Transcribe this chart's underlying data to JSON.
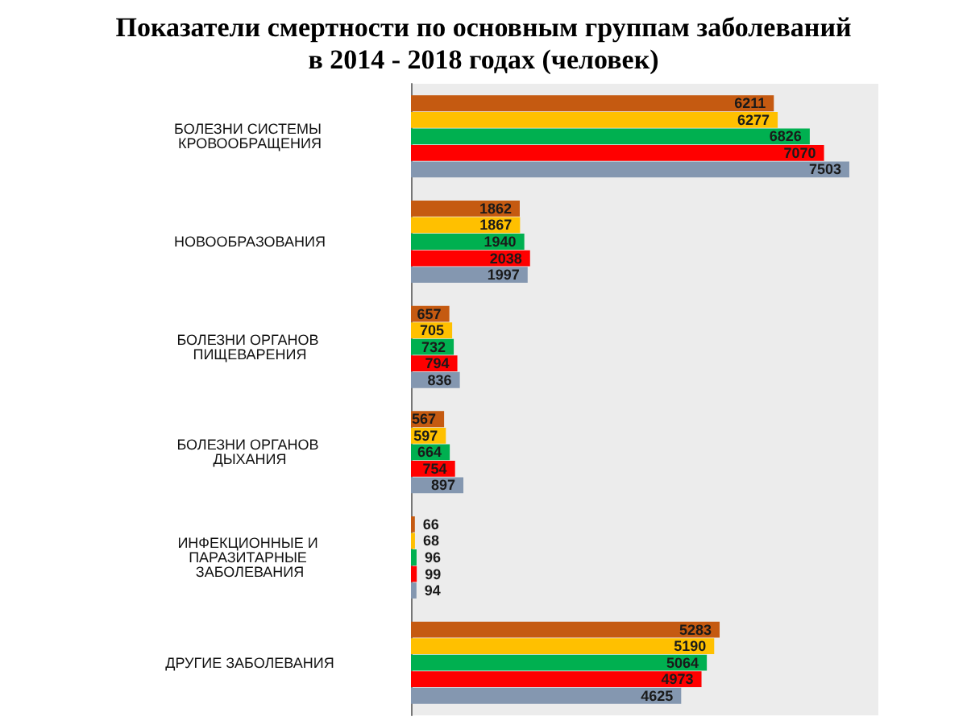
{
  "chart_data": {
    "type": "bar",
    "orientation": "horizontal",
    "title": "Показатели смертности по основным группам заболеваний\nв 2014 - 2018 годах (человек)",
    "categories": [
      "БОЛЕЗНИ СИСТЕМЫ КРОВООБРАЩЕНИЯ",
      "НОВООБРАЗОВАНИЯ",
      "БОЛЕЗНИ ОРГАНОВ ПИЩЕВАРЕНИЯ",
      "БОЛЕЗНИ ОРГАНОВ ДЫХАНИЯ",
      "ИНФЕКЦИОННЫЕ И ПАРАЗИТАРНЫЕ ЗАБОЛЕВАНИЯ",
      "ДРУГИЕ ЗАБОЛЕВАНИЯ"
    ],
    "series": [
      {
        "color": "#c55a11",
        "values": [
          6211,
          1862,
          657,
          567,
          66,
          5283
        ]
      },
      {
        "color": "#ffc000",
        "values": [
          6277,
          1867,
          705,
          597,
          68,
          5190
        ]
      },
      {
        "color": "#00b050",
        "values": [
          6826,
          1940,
          732,
          664,
          96,
          5064
        ]
      },
      {
        "color": "#ff0000",
        "values": [
          7070,
          2038,
          794,
          754,
          99,
          4973
        ]
      },
      {
        "color": "#8497b0",
        "values": [
          7503,
          1997,
          836,
          897,
          94,
          4625
        ]
      }
    ],
    "data_labels": true,
    "grid": false
  }
}
